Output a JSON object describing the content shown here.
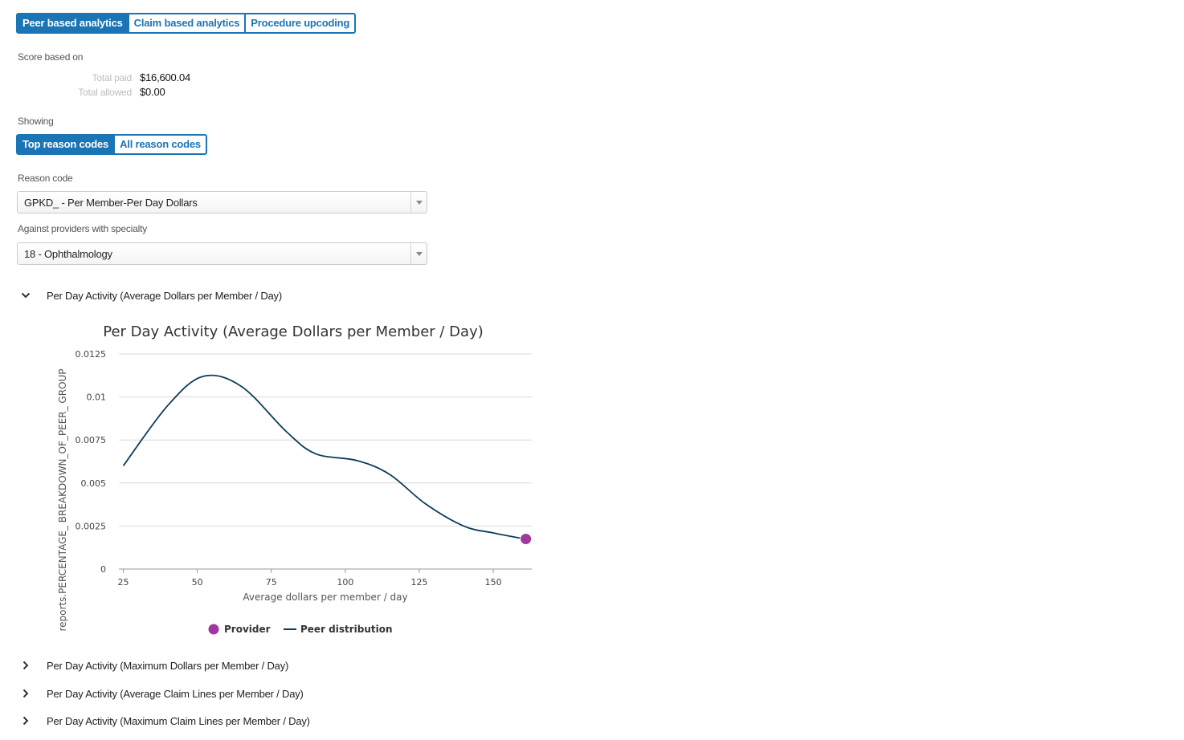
{
  "tabs": [
    {
      "label": "Peer based analytics",
      "active": true
    },
    {
      "label": "Claim based analytics",
      "active": false
    },
    {
      "label": "Procedure upcoding",
      "active": false
    }
  ],
  "score": {
    "heading": "Score based on",
    "total_paid_label": "Total paid",
    "total_paid_value": "$16,600.04",
    "total_allowed_label": "Total allowed",
    "total_allowed_value": "$0.00"
  },
  "showing": {
    "heading": "Showing",
    "options": [
      {
        "label": "Top reason codes",
        "active": true
      },
      {
        "label": "All reason codes",
        "active": false
      }
    ]
  },
  "reason_code": {
    "label": "Reason code",
    "value": "GPKD_ - Per Member-Per Day Dollars"
  },
  "specialty": {
    "label": "Against providers with specialty",
    "value": "18 - Ophthalmology"
  },
  "sections": {
    "expanded_title": "Per Day Activity (Average Dollars per Member / Day)",
    "collapsed": [
      "Per Day Activity (Maximum Dollars per Member / Day)",
      "Per Day Activity (Average Claim Lines per Member / Day)",
      "Per Day Activity (Maximum Claim Lines per Member / Day)"
    ]
  },
  "colors": {
    "accent": "#1b75b5",
    "peer_line": "#0d3d5c",
    "provider_point": "#a0399e"
  },
  "chart_data": {
    "type": "line",
    "title": "Per Day Activity (Average Dollars per Member / Day)",
    "xlabel": "Average dollars per member / day",
    "ylabel": "reports.PERCENTAGE_ BREAKDOWN_OF_PEER_ GROUP",
    "xlim": [
      23.5,
      163
    ],
    "ylim": [
      0,
      0.0125
    ],
    "xticks": [
      "25",
      "50",
      "75",
      "100",
      "125",
      "150"
    ],
    "xtick_values": [
      25,
      50,
      75,
      100,
      125,
      150
    ],
    "yticks": [
      "0",
      "0.0025",
      "0.005",
      "0.0075",
      "0.01",
      "0.0125"
    ],
    "ytick_values": [
      0,
      0.0025,
      0.005,
      0.0075,
      0.01,
      0.0125
    ],
    "grid": true,
    "legend_position": "bottom",
    "series": [
      {
        "name": "Peer distribution",
        "type": "line",
        "x": [
          25,
          40,
          52,
          65,
          80,
          90,
          104,
          115,
          127,
          140,
          150,
          159
        ],
        "y": [
          0.006,
          0.0095,
          0.0112,
          0.0106,
          0.008,
          0.0067,
          0.0063,
          0.0055,
          0.0038,
          0.0025,
          0.0021,
          0.0018
        ]
      },
      {
        "name": "Provider",
        "type": "scatter",
        "x": [
          161
        ],
        "y": [
          0.00175
        ]
      }
    ]
  }
}
